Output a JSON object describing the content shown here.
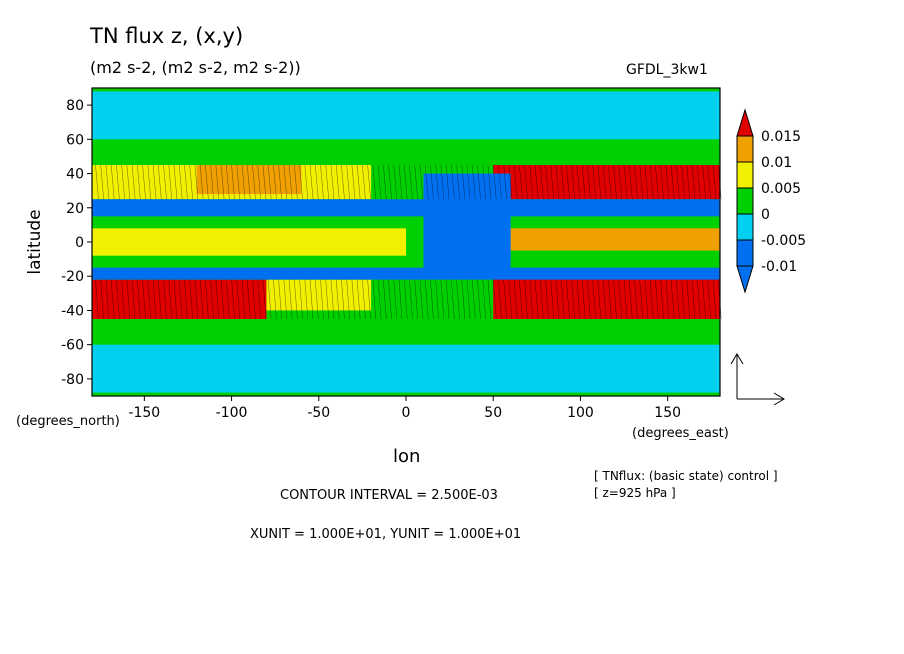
{
  "chart_data": {
    "type": "heatmap",
    "title": "TN flux z, (x,y)",
    "subtitle": "(m2 s-2, (m2 s-2, m2 s-2))",
    "model": "GFDL_3kw1",
    "xlabel": "lon",
    "ylabel": "latitude",
    "x_unit_label": "(degrees_east)",
    "y_unit_label": "(degrees_north)",
    "xlim": [
      -180,
      180
    ],
    "ylim": [
      -90,
      90
    ],
    "xticks": [
      -150,
      -100,
      -50,
      0,
      50,
      100,
      150
    ],
    "xtick_labels": [
      "-150",
      "-100",
      "-50",
      "0",
      "50",
      "100",
      "150"
    ],
    "yticks": [
      80,
      60,
      40,
      20,
      0,
      -20,
      -40,
      -60,
      -80
    ],
    "ytick_labels": [
      "80",
      "60",
      "40",
      "20",
      "0",
      "-20",
      "-40",
      "-60",
      "-80"
    ],
    "colorbar": {
      "levels": [
        0.015,
        0.01,
        0.005,
        0,
        -0.005,
        -0.01
      ],
      "labels": [
        "0.015",
        "0.01",
        "0.005",
        "0",
        "-0.005",
        "-0.01"
      ],
      "colors": [
        "#e00000",
        "#f0a000",
        "#f0f000",
        "#00d000",
        "#00d0f0",
        "#0070f0"
      ]
    },
    "regions": [
      {
        "lon": [
          -180,
          180
        ],
        "lat": [
          60,
          88
        ],
        "value": -0.005
      },
      {
        "lon": [
          -180,
          180
        ],
        "lat": [
          -60,
          -88
        ],
        "value": -0.005
      },
      {
        "lon": [
          -180,
          -20
        ],
        "lat": [
          25,
          45
        ],
        "value": 0.005
      },
      {
        "lon": [
          -120,
          -60
        ],
        "lat": [
          28,
          45
        ],
        "value": 0.01
      },
      {
        "lon": [
          50,
          180
        ],
        "lat": [
          25,
          45
        ],
        "value": 0.015
      },
      {
        "lon": [
          50,
          180
        ],
        "lat": [
          -20,
          -45
        ],
        "value": 0.015
      },
      {
        "lon": [
          -180,
          -80
        ],
        "lat": [
          -22,
          -45
        ],
        "value": 0.015
      },
      {
        "lon": [
          -80,
          -20
        ],
        "lat": [
          -22,
          -40
        ],
        "value": 0.005
      },
      {
        "lon": [
          -180,
          0
        ],
        "lat": [
          -8,
          8
        ],
        "value": 0.005
      },
      {
        "lon": [
          20,
          180
        ],
        "lat": [
          -5,
          8
        ],
        "value": 0.01
      },
      {
        "lon": [
          -180,
          180
        ],
        "lat": [
          15,
          25
        ],
        "value": -0.01
      },
      {
        "lon": [
          -180,
          180
        ],
        "lat": [
          -15,
          -22
        ],
        "value": -0.01
      },
      {
        "lon": [
          10,
          60
        ],
        "lat": [
          -20,
          40
        ],
        "value": -0.01
      }
    ],
    "vector_reference": "arrow"
  },
  "footer": {
    "contour_interval": "CONTOUR INTERVAL = 2.500E-03",
    "units": "XUNIT = 1.000E+01, YUNIT = 1.000E+01"
  },
  "notes": {
    "line1": "[ TNflux: (basic state) control ]",
    "line2": "[ z=925 hPa ]"
  }
}
